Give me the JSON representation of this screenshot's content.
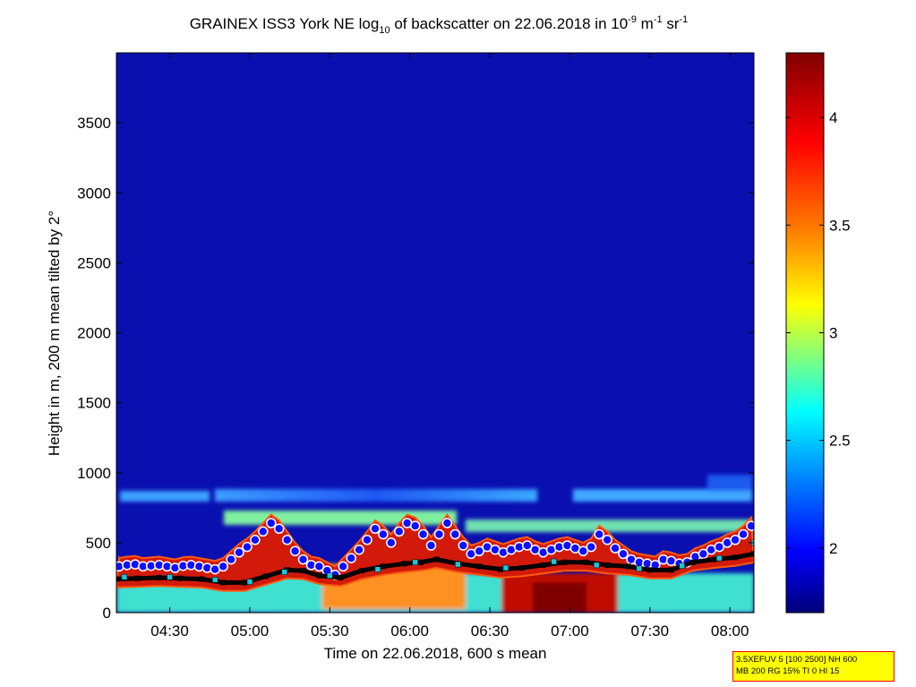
{
  "chart_data": {
    "type": "heatmap",
    "title": {
      "prefix": "GRAINEX ISS3 York NE log",
      "log_base": "10",
      "middle": " of backscatter on 22.06.2018 in 10",
      "exp1": "-9",
      "m_unit": " m",
      "exp2": "-1",
      "sr_unit": " sr",
      "exp3": "-1"
    },
    "xlabel": "Time on 22.06.2018, 600 s mean",
    "ylabel": "Height in m, 200 m mean tilted by 2°",
    "x_ticks": [
      "04:30",
      "05:00",
      "05:30",
      "06:00",
      "06:30",
      "07:00",
      "07:30",
      "08:00"
    ],
    "y_ticks": [
      "0",
      "500",
      "1000",
      "1500",
      "2000",
      "2500",
      "3000",
      "3500"
    ],
    "xlim_minutes": [
      250,
      489
    ],
    "ylim": [
      0,
      4000
    ],
    "colorbar": {
      "range": [
        1.7,
        4.3
      ],
      "ticks": [
        "2",
        "2.5",
        "3",
        "3.5",
        "4"
      ]
    },
    "series": [
      {
        "marker": "circle",
        "color": "#1010ff",
        "points": [
          [
            251,
            330
          ],
          [
            254,
            340
          ],
          [
            257,
            345
          ],
          [
            260,
            330
          ],
          [
            263,
            335
          ],
          [
            266,
            340
          ],
          [
            269,
            330
          ],
          [
            272,
            320
          ],
          [
            275,
            335
          ],
          [
            278,
            340
          ],
          [
            281,
            330
          ],
          [
            284,
            320
          ],
          [
            287,
            310
          ],
          [
            290,
            330
          ],
          [
            293,
            380
          ],
          [
            296,
            430
          ],
          [
            299,
            470
          ],
          [
            302,
            520
          ],
          [
            305,
            580
          ],
          [
            308,
            640
          ],
          [
            311,
            600
          ],
          [
            314,
            520
          ],
          [
            317,
            440
          ],
          [
            320,
            380
          ],
          [
            323,
            340
          ],
          [
            326,
            330
          ],
          [
            329,
            300
          ],
          [
            332,
            270
          ],
          [
            335,
            330
          ],
          [
            338,
            390
          ],
          [
            341,
            450
          ],
          [
            344,
            520
          ],
          [
            347,
            600
          ],
          [
            350,
            560
          ],
          [
            353,
            500
          ],
          [
            356,
            580
          ],
          [
            359,
            640
          ],
          [
            362,
            620
          ],
          [
            365,
            560
          ],
          [
            368,
            480
          ],
          [
            371,
            560
          ],
          [
            374,
            640
          ],
          [
            377,
            560
          ],
          [
            380,
            480
          ],
          [
            383,
            420
          ],
          [
            386,
            440
          ],
          [
            389,
            470
          ],
          [
            392,
            450
          ],
          [
            395,
            430
          ],
          [
            398,
            450
          ],
          [
            401,
            470
          ],
          [
            404,
            480
          ],
          [
            407,
            450
          ],
          [
            410,
            430
          ],
          [
            413,
            450
          ],
          [
            416,
            470
          ],
          [
            419,
            480
          ],
          [
            422,
            460
          ],
          [
            425,
            440
          ],
          [
            428,
            470
          ],
          [
            431,
            560
          ],
          [
            434,
            520
          ],
          [
            437,
            460
          ],
          [
            440,
            420
          ],
          [
            443,
            380
          ],
          [
            446,
            360
          ],
          [
            449,
            350
          ],
          [
            452,
            340
          ],
          [
            455,
            380
          ],
          [
            458,
            370
          ],
          [
            461,
            350
          ],
          [
            464,
            360
          ],
          [
            467,
            400
          ],
          [
            470,
            420
          ],
          [
            473,
            450
          ],
          [
            476,
            470
          ],
          [
            479,
            500
          ],
          [
            482,
            520
          ],
          [
            485,
            560
          ],
          [
            488,
            620
          ]
        ]
      },
      {
        "marker": "square",
        "color": "#000000",
        "points": [
          [
            250,
            240
          ],
          [
            258,
            245
          ],
          [
            266,
            250
          ],
          [
            274,
            245
          ],
          [
            282,
            240
          ],
          [
            290,
            215
          ],
          [
            298,
            215
          ],
          [
            306,
            260
          ],
          [
            314,
            305
          ],
          [
            320,
            300
          ],
          [
            326,
            265
          ],
          [
            334,
            250
          ],
          [
            342,
            300
          ],
          [
            350,
            330
          ],
          [
            358,
            350
          ],
          [
            364,
            360
          ],
          [
            370,
            380
          ],
          [
            378,
            350
          ],
          [
            386,
            330
          ],
          [
            394,
            310
          ],
          [
            402,
            320
          ],
          [
            410,
            340
          ],
          [
            418,
            360
          ],
          [
            426,
            360
          ],
          [
            434,
            340
          ],
          [
            442,
            330
          ],
          [
            450,
            305
          ],
          [
            458,
            305
          ],
          [
            466,
            360
          ],
          [
            474,
            380
          ],
          [
            482,
            395
          ],
          [
            489,
            420
          ]
        ]
      },
      {
        "marker": "square",
        "color": "#19c8d8",
        "points": [
          [
            253,
            255
          ],
          [
            270,
            255
          ],
          [
            287,
            235
          ],
          [
            300,
            220
          ],
          [
            313,
            290
          ],
          [
            330,
            265
          ],
          [
            348,
            310
          ],
          [
            362,
            360
          ],
          [
            378,
            345
          ],
          [
            396,
            320
          ],
          [
            414,
            365
          ],
          [
            430,
            340
          ],
          [
            446,
            315
          ],
          [
            462,
            335
          ],
          [
            476,
            390
          ],
          [
            489,
            500
          ]
        ]
      }
    ]
  },
  "info_box": {
    "line1": "3.5XEFUV 5 [100 2500] NH 600",
    "line2": "MB 200 RG 15% TI 0 HI 15"
  }
}
